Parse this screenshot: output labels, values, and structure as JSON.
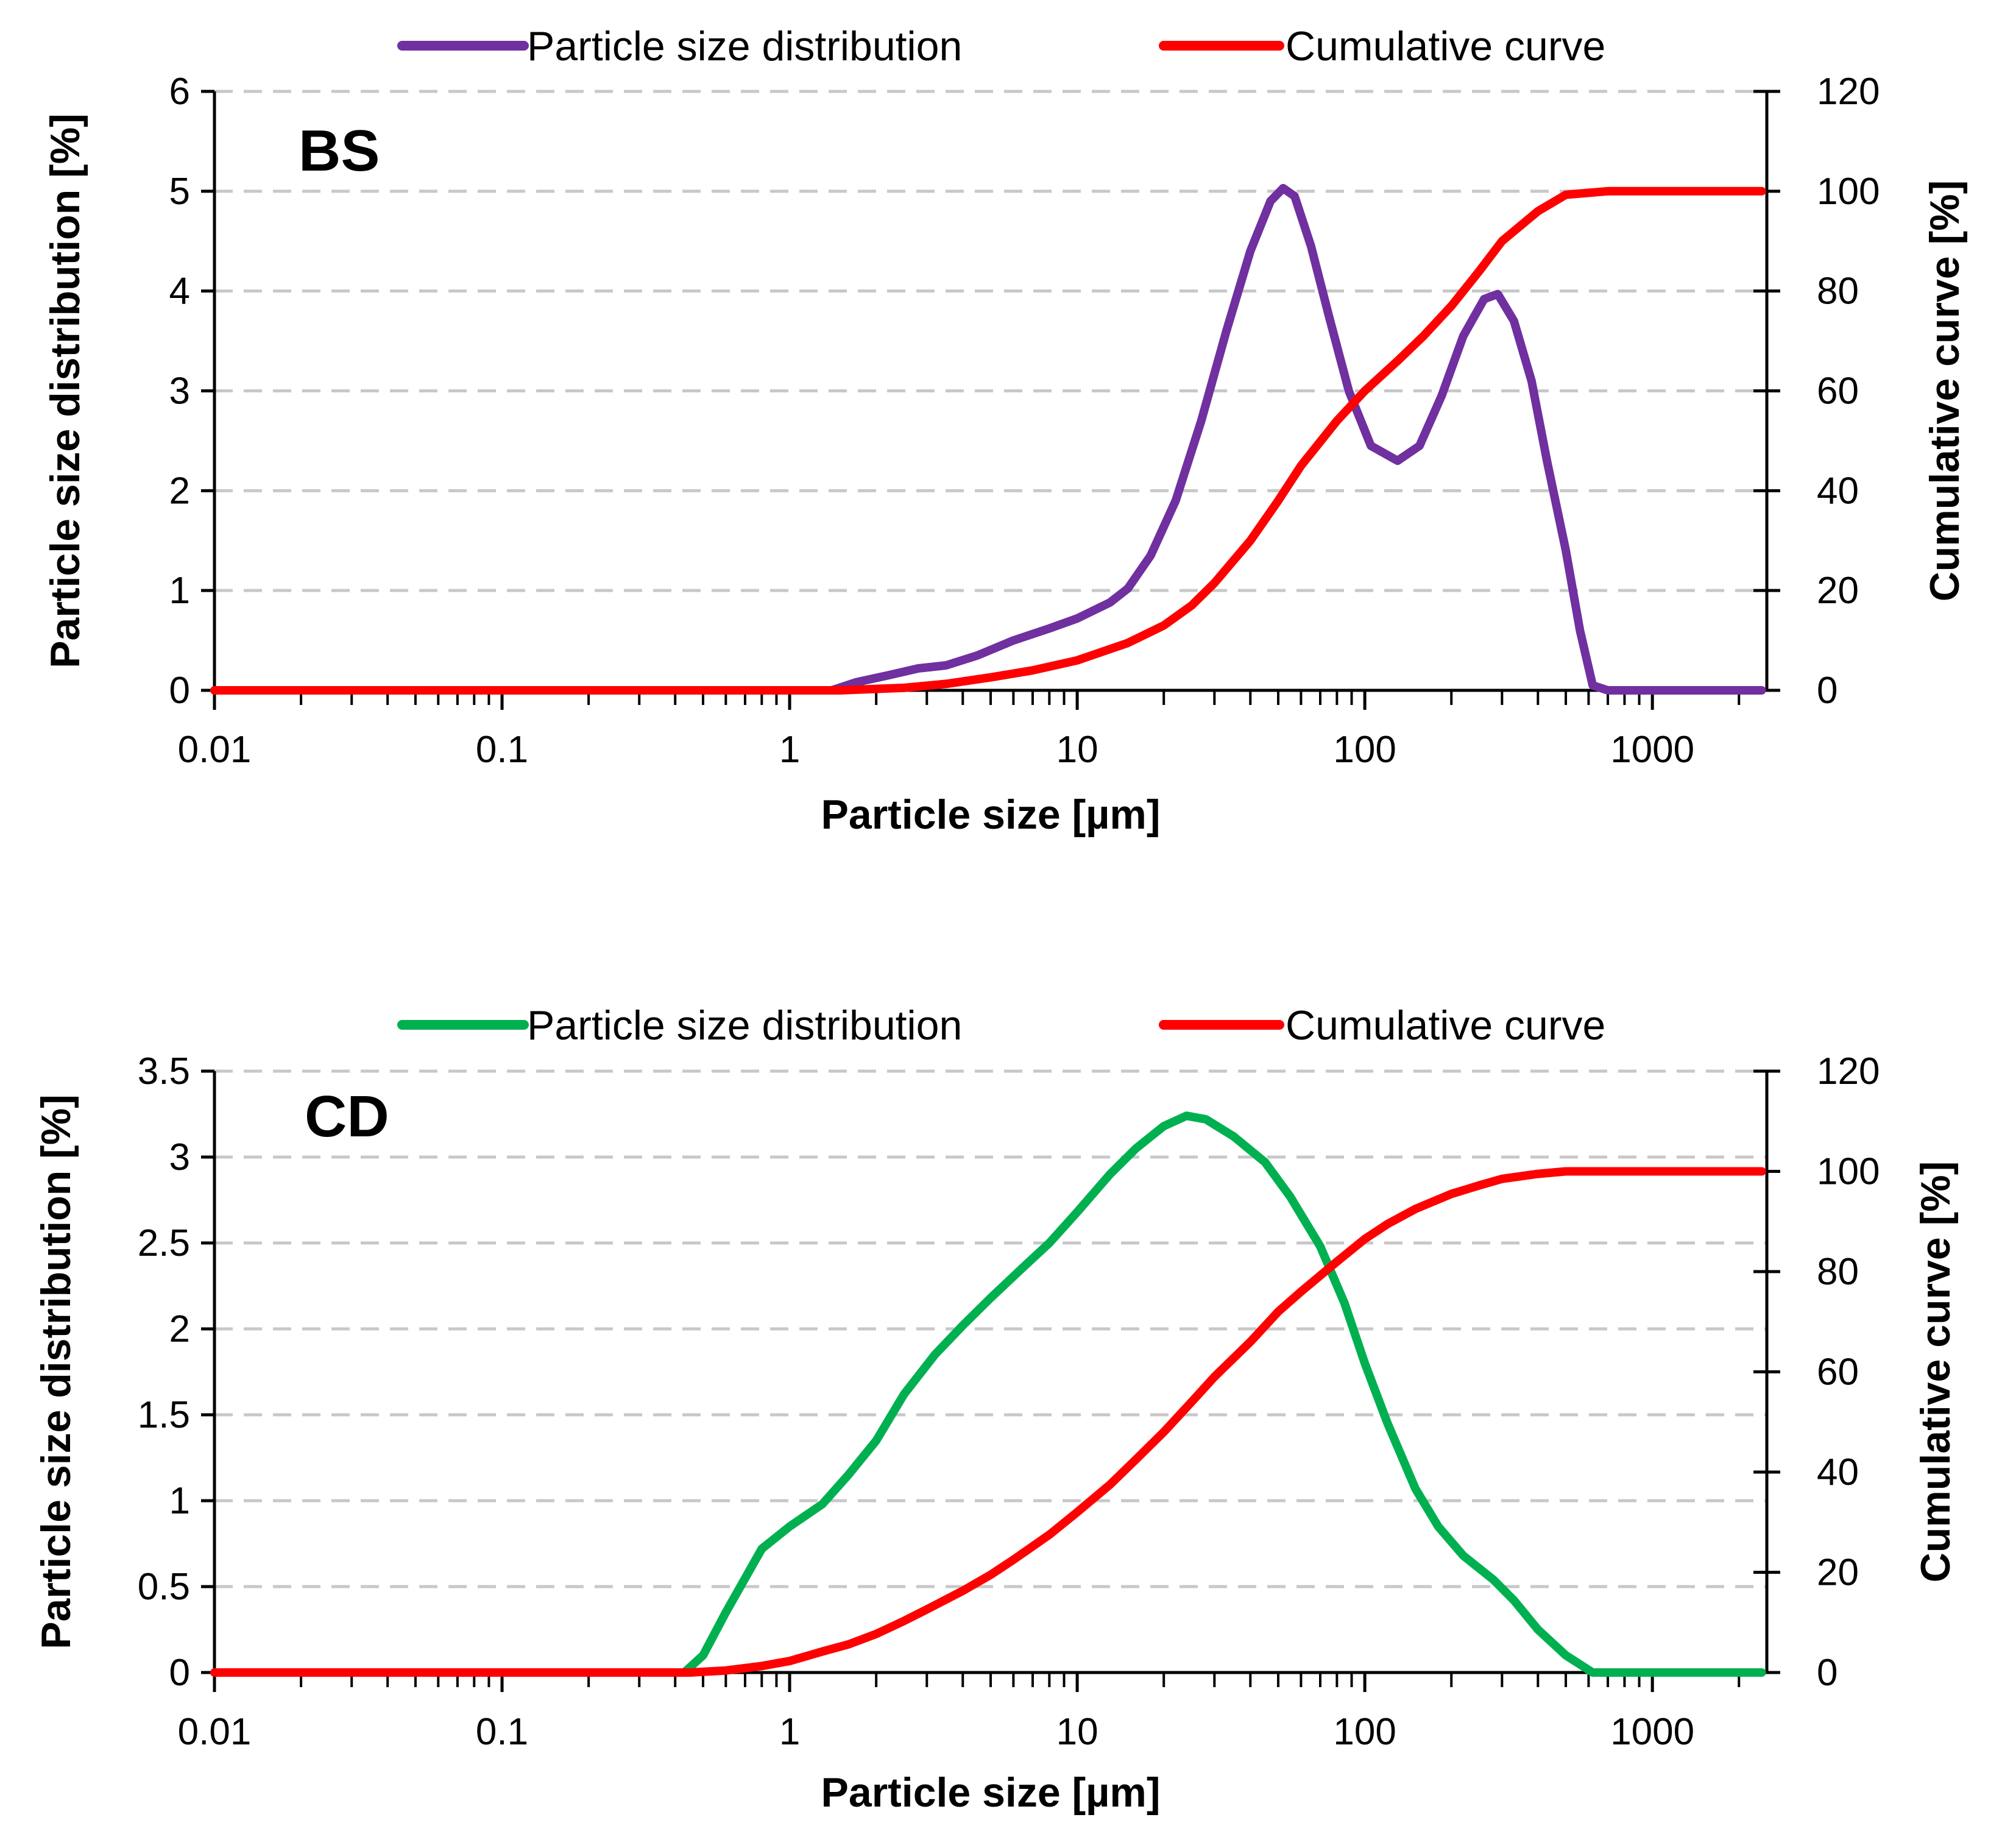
{
  "chart_data": [
    {
      "type": "line",
      "panel_label": "BS",
      "xlabel": "Particle size [µm]",
      "ylabel": "Particle size distribution [%]",
      "y2label": "Cumulative curve [%]",
      "x_scale": "log",
      "xlim": [
        0.01,
        2500
      ],
      "xticks": [
        "0.01",
        "0.1",
        "1",
        "10",
        "100",
        "1000"
      ],
      "ylim": [
        0,
        6
      ],
      "yticks": [
        "0",
        "1",
        "2",
        "3",
        "4",
        "5",
        "6"
      ],
      "y2lim": [
        0,
        120
      ],
      "y2ticks": [
        "0",
        "20",
        "40",
        "60",
        "80",
        "100",
        "120"
      ],
      "grid": "horizontal dashed",
      "legend_position": "top",
      "series": [
        {
          "name": "Particle size distribution",
          "axis": "left",
          "color": "#7030A0",
          "points": [
            [
              0.01,
              0
            ],
            [
              1.4,
              0
            ],
            [
              1.7,
              0.08
            ],
            [
              2.2,
              0.15
            ],
            [
              2.8,
              0.22
            ],
            [
              3.5,
              0.25
            ],
            [
              4.5,
              0.35
            ],
            [
              6,
              0.5
            ],
            [
              8,
              0.62
            ],
            [
              10,
              0.72
            ],
            [
              13,
              0.88
            ],
            [
              15,
              1.02
            ],
            [
              18,
              1.35
            ],
            [
              22,
              1.9
            ],
            [
              27,
              2.7
            ],
            [
              33,
              3.6
            ],
            [
              40,
              4.4
            ],
            [
              47,
              4.9
            ],
            [
              52,
              5.03
            ],
            [
              57,
              4.95
            ],
            [
              65,
              4.45
            ],
            [
              75,
              3.75
            ],
            [
              88,
              3.0
            ],
            [
              105,
              2.45
            ],
            [
              130,
              2.3
            ],
            [
              155,
              2.45
            ],
            [
              185,
              2.95
            ],
            [
              220,
              3.55
            ],
            [
              260,
              3.92
            ],
            [
              290,
              3.97
            ],
            [
              330,
              3.7
            ],
            [
              380,
              3.1
            ],
            [
              430,
              2.3
            ],
            [
              500,
              1.4
            ],
            [
              560,
              0.6
            ],
            [
              620,
              0.05
            ],
            [
              700,
              0
            ],
            [
              2400,
              0
            ]
          ]
        },
        {
          "name": "Cumulative curve",
          "axis": "right",
          "color": "#FF0000",
          "points": [
            [
              0.01,
              0
            ],
            [
              1.5,
              0
            ],
            [
              2.5,
              0.5
            ],
            [
              3.5,
              1.3
            ],
            [
              5,
              2.6
            ],
            [
              7,
              4
            ],
            [
              10,
              6
            ],
            [
              15,
              9.5
            ],
            [
              20,
              13
            ],
            [
              25,
              17
            ],
            [
              30,
              21.5
            ],
            [
              40,
              30
            ],
            [
              50,
              38
            ],
            [
              60,
              45
            ],
            [
              80,
              54
            ],
            [
              100,
              60
            ],
            [
              130,
              66
            ],
            [
              160,
              71
            ],
            [
              200,
              77
            ],
            [
              250,
              84
            ],
            [
              300,
              90
            ],
            [
              400,
              96
            ],
            [
              500,
              99.3
            ],
            [
              700,
              100
            ],
            [
              2400,
              100
            ]
          ]
        }
      ]
    },
    {
      "type": "line",
      "panel_label": "CD",
      "xlabel": "Particle size [µm]",
      "ylabel": "Particle size distribution [%]",
      "y2label": "Cumulative curve [%]",
      "x_scale": "log",
      "xlim": [
        0.01,
        2500
      ],
      "xticks": [
        "0.01",
        "0.1",
        "1",
        "10",
        "100",
        "1000"
      ],
      "ylim": [
        0,
        3.5
      ],
      "yticks": [
        "0",
        "0.5",
        "1",
        "1.5",
        "2",
        "2.5",
        "3",
        "3.5"
      ],
      "y2lim": [
        0,
        120
      ],
      "y2ticks": [
        "0",
        "20",
        "40",
        "60",
        "80",
        "100",
        "120"
      ],
      "grid": "horizontal dashed",
      "legend_position": "top",
      "series": [
        {
          "name": "Particle size distribution",
          "axis": "left",
          "color": "#00B050",
          "points": [
            [
              0.01,
              0
            ],
            [
              0.43,
              0
            ],
            [
              0.5,
              0.1
            ],
            [
              0.6,
              0.35
            ],
            [
              0.8,
              0.72
            ],
            [
              1,
              0.85
            ],
            [
              1.3,
              0.98
            ],
            [
              1.6,
              1.15
            ],
            [
              2,
              1.35
            ],
            [
              2.5,
              1.62
            ],
            [
              3.2,
              1.85
            ],
            [
              4,
              2.02
            ],
            [
              5,
              2.18
            ],
            [
              6.5,
              2.36
            ],
            [
              8,
              2.5
            ],
            [
              10,
              2.68
            ],
            [
              13,
              2.9
            ],
            [
              16,
              3.05
            ],
            [
              20,
              3.18
            ],
            [
              24,
              3.24
            ],
            [
              28,
              3.22
            ],
            [
              35,
              3.12
            ],
            [
              45,
              2.97
            ],
            [
              55,
              2.77
            ],
            [
              70,
              2.48
            ],
            [
              85,
              2.15
            ],
            [
              100,
              1.8
            ],
            [
              120,
              1.45
            ],
            [
              150,
              1.07
            ],
            [
              180,
              0.85
            ],
            [
              220,
              0.68
            ],
            [
              280,
              0.54
            ],
            [
              330,
              0.42
            ],
            [
              400,
              0.25
            ],
            [
              500,
              0.1
            ],
            [
              620,
              0
            ],
            [
              2400,
              0
            ]
          ]
        },
        {
          "name": "Cumulative curve",
          "axis": "right",
          "color": "#FF0000",
          "points": [
            [
              0.01,
              0
            ],
            [
              0.45,
              0
            ],
            [
              0.6,
              0.4
            ],
            [
              0.8,
              1.3
            ],
            [
              1,
              2.3
            ],
            [
              1.3,
              4.2
            ],
            [
              1.6,
              5.6
            ],
            [
              2,
              7.7
            ],
            [
              2.5,
              10.3
            ],
            [
              3,
              12.6
            ],
            [
              4,
              16.3
            ],
            [
              5,
              19.5
            ],
            [
              6,
              22.5
            ],
            [
              8,
              27.5
            ],
            [
              10,
              32
            ],
            [
              13,
              37.5
            ],
            [
              16,
              42.5
            ],
            [
              20,
              48
            ],
            [
              25,
              54
            ],
            [
              30,
              59
            ],
            [
              40,
              66
            ],
            [
              50,
              72
            ],
            [
              60,
              76
            ],
            [
              80,
              82
            ],
            [
              100,
              86.5
            ],
            [
              120,
              89.5
            ],
            [
              150,
              92.5
            ],
            [
              200,
              95.5
            ],
            [
              250,
              97.2
            ],
            [
              300,
              98.5
            ],
            [
              400,
              99.5
            ],
            [
              500,
              100
            ],
            [
              2400,
              100
            ]
          ]
        }
      ]
    }
  ]
}
